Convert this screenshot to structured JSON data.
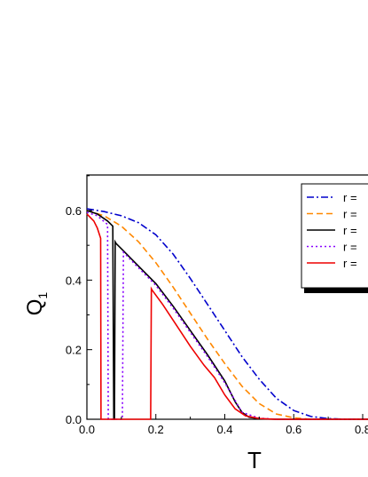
{
  "chart_data": {
    "type": "line",
    "xlabel": "T",
    "ylabel": "Q",
    "ylabel_subscript": "1",
    "xlim": [
      0.0,
      0.85
    ],
    "ylim": [
      0.0,
      0.7
    ],
    "x_ticks": [
      "0.0",
      "0.2",
      "0.4",
      "0.6",
      "0.8"
    ],
    "y_ticks": [
      "0.0",
      "0.2",
      "0.4",
      "0.6"
    ],
    "legend_position": "top-right",
    "series": [
      {
        "name": "r =",
        "color": "#0000cc",
        "dash": "dashdot",
        "x": [
          0.0,
          0.05,
          0.1,
          0.15,
          0.2,
          0.25,
          0.3,
          0.35,
          0.4,
          0.45,
          0.5,
          0.55,
          0.6,
          0.65,
          0.7,
          0.75,
          0.8,
          0.85
        ],
        "y": [
          0.605,
          0.597,
          0.585,
          0.565,
          0.53,
          0.475,
          0.405,
          0.33,
          0.255,
          0.18,
          0.115,
          0.06,
          0.025,
          0.008,
          0.002,
          0.0,
          0.0,
          0.0
        ]
      },
      {
        "name": "r =",
        "color": "#ff8800",
        "dash": "dashed",
        "x": [
          0.0,
          0.05,
          0.1,
          0.15,
          0.2,
          0.25,
          0.3,
          0.35,
          0.4,
          0.45,
          0.5,
          0.55,
          0.6,
          0.65,
          0.7,
          0.8,
          0.85
        ],
        "y": [
          0.6,
          0.585,
          0.555,
          0.51,
          0.45,
          0.38,
          0.305,
          0.23,
          0.16,
          0.095,
          0.045,
          0.015,
          0.004,
          0.0,
          0.0,
          0.0,
          0.0
        ]
      },
      {
        "name": "r =",
        "color": "#000000",
        "dash": "solid",
        "x": [
          0.0,
          0.03,
          0.06,
          0.075,
          0.078,
          0.08,
          0.082,
          0.085,
          0.09,
          0.1,
          0.15,
          0.2,
          0.25,
          0.3,
          0.35,
          0.4,
          0.43,
          0.45,
          0.47,
          0.5,
          0.55,
          0.6,
          0.85
        ],
        "y": [
          0.6,
          0.59,
          0.57,
          0.555,
          0.0,
          0.0,
          0.51,
          0.505,
          0.5,
          0.49,
          0.44,
          0.39,
          0.325,
          0.255,
          0.185,
          0.11,
          0.05,
          0.02,
          0.006,
          0.001,
          0.0,
          0.0,
          0.0
        ]
      },
      {
        "name": "r =",
        "color": "#8800ff",
        "dash": "dotted",
        "x": [
          0.0,
          0.03,
          0.06,
          0.062,
          0.064,
          0.085,
          0.095,
          0.1,
          0.103,
          0.106,
          0.15,
          0.2,
          0.25,
          0.3,
          0.35,
          0.4,
          0.45,
          0.5,
          0.55,
          0.85
        ],
        "y": [
          0.595,
          0.585,
          0.56,
          0.0,
          0.0,
          0.0,
          0.0,
          0.0,
          0.0,
          0.48,
          0.435,
          0.385,
          0.32,
          0.25,
          0.18,
          0.105,
          0.02,
          0.003,
          0.0,
          0.0
        ]
      },
      {
        "name": "r =",
        "color": "#ee0000",
        "dash": "solid",
        "x": [
          0.0,
          0.02,
          0.03,
          0.04,
          0.041,
          0.043,
          0.185,
          0.187,
          0.19,
          0.22,
          0.26,
          0.3,
          0.34,
          0.37,
          0.4,
          0.43,
          0.46,
          0.5,
          0.55,
          0.85
        ],
        "y": [
          0.59,
          0.57,
          0.55,
          0.52,
          0.0,
          0.0,
          0.0,
          0.375,
          0.37,
          0.33,
          0.27,
          0.21,
          0.155,
          0.12,
          0.07,
          0.03,
          0.01,
          0.002,
          0.0,
          0.0
        ]
      }
    ]
  }
}
